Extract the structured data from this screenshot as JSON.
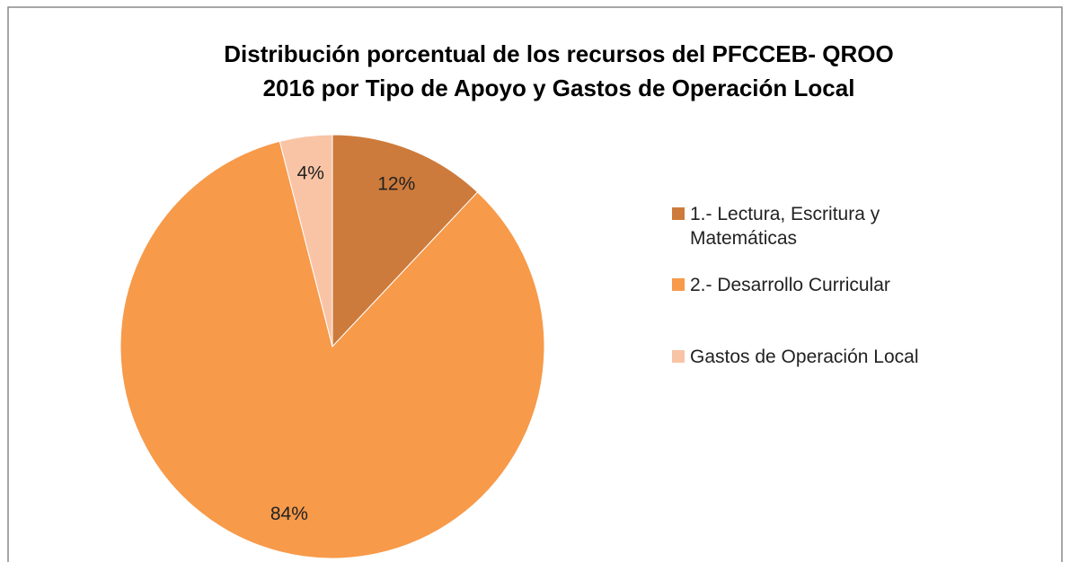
{
  "chart_data": {
    "type": "pie",
    "title": [
      "Distribución porcentual de los recursos  del PFCCEB- QROO",
      "2016 por Tipo de Apoyo  y Gastos de Operación Local"
    ],
    "categories": [
      "1.- Lectura, Escritura y Matemáticas",
      "2.- Desarrollo Curricular",
      "Gastos de Operación Local"
    ],
    "values": [
      12,
      84,
      4
    ],
    "value_labels": [
      "12%",
      "84%",
      "4%"
    ],
    "colors": [
      "#cd7b3c",
      "#f79a4a",
      "#f9c4a6"
    ],
    "legend": "right"
  }
}
